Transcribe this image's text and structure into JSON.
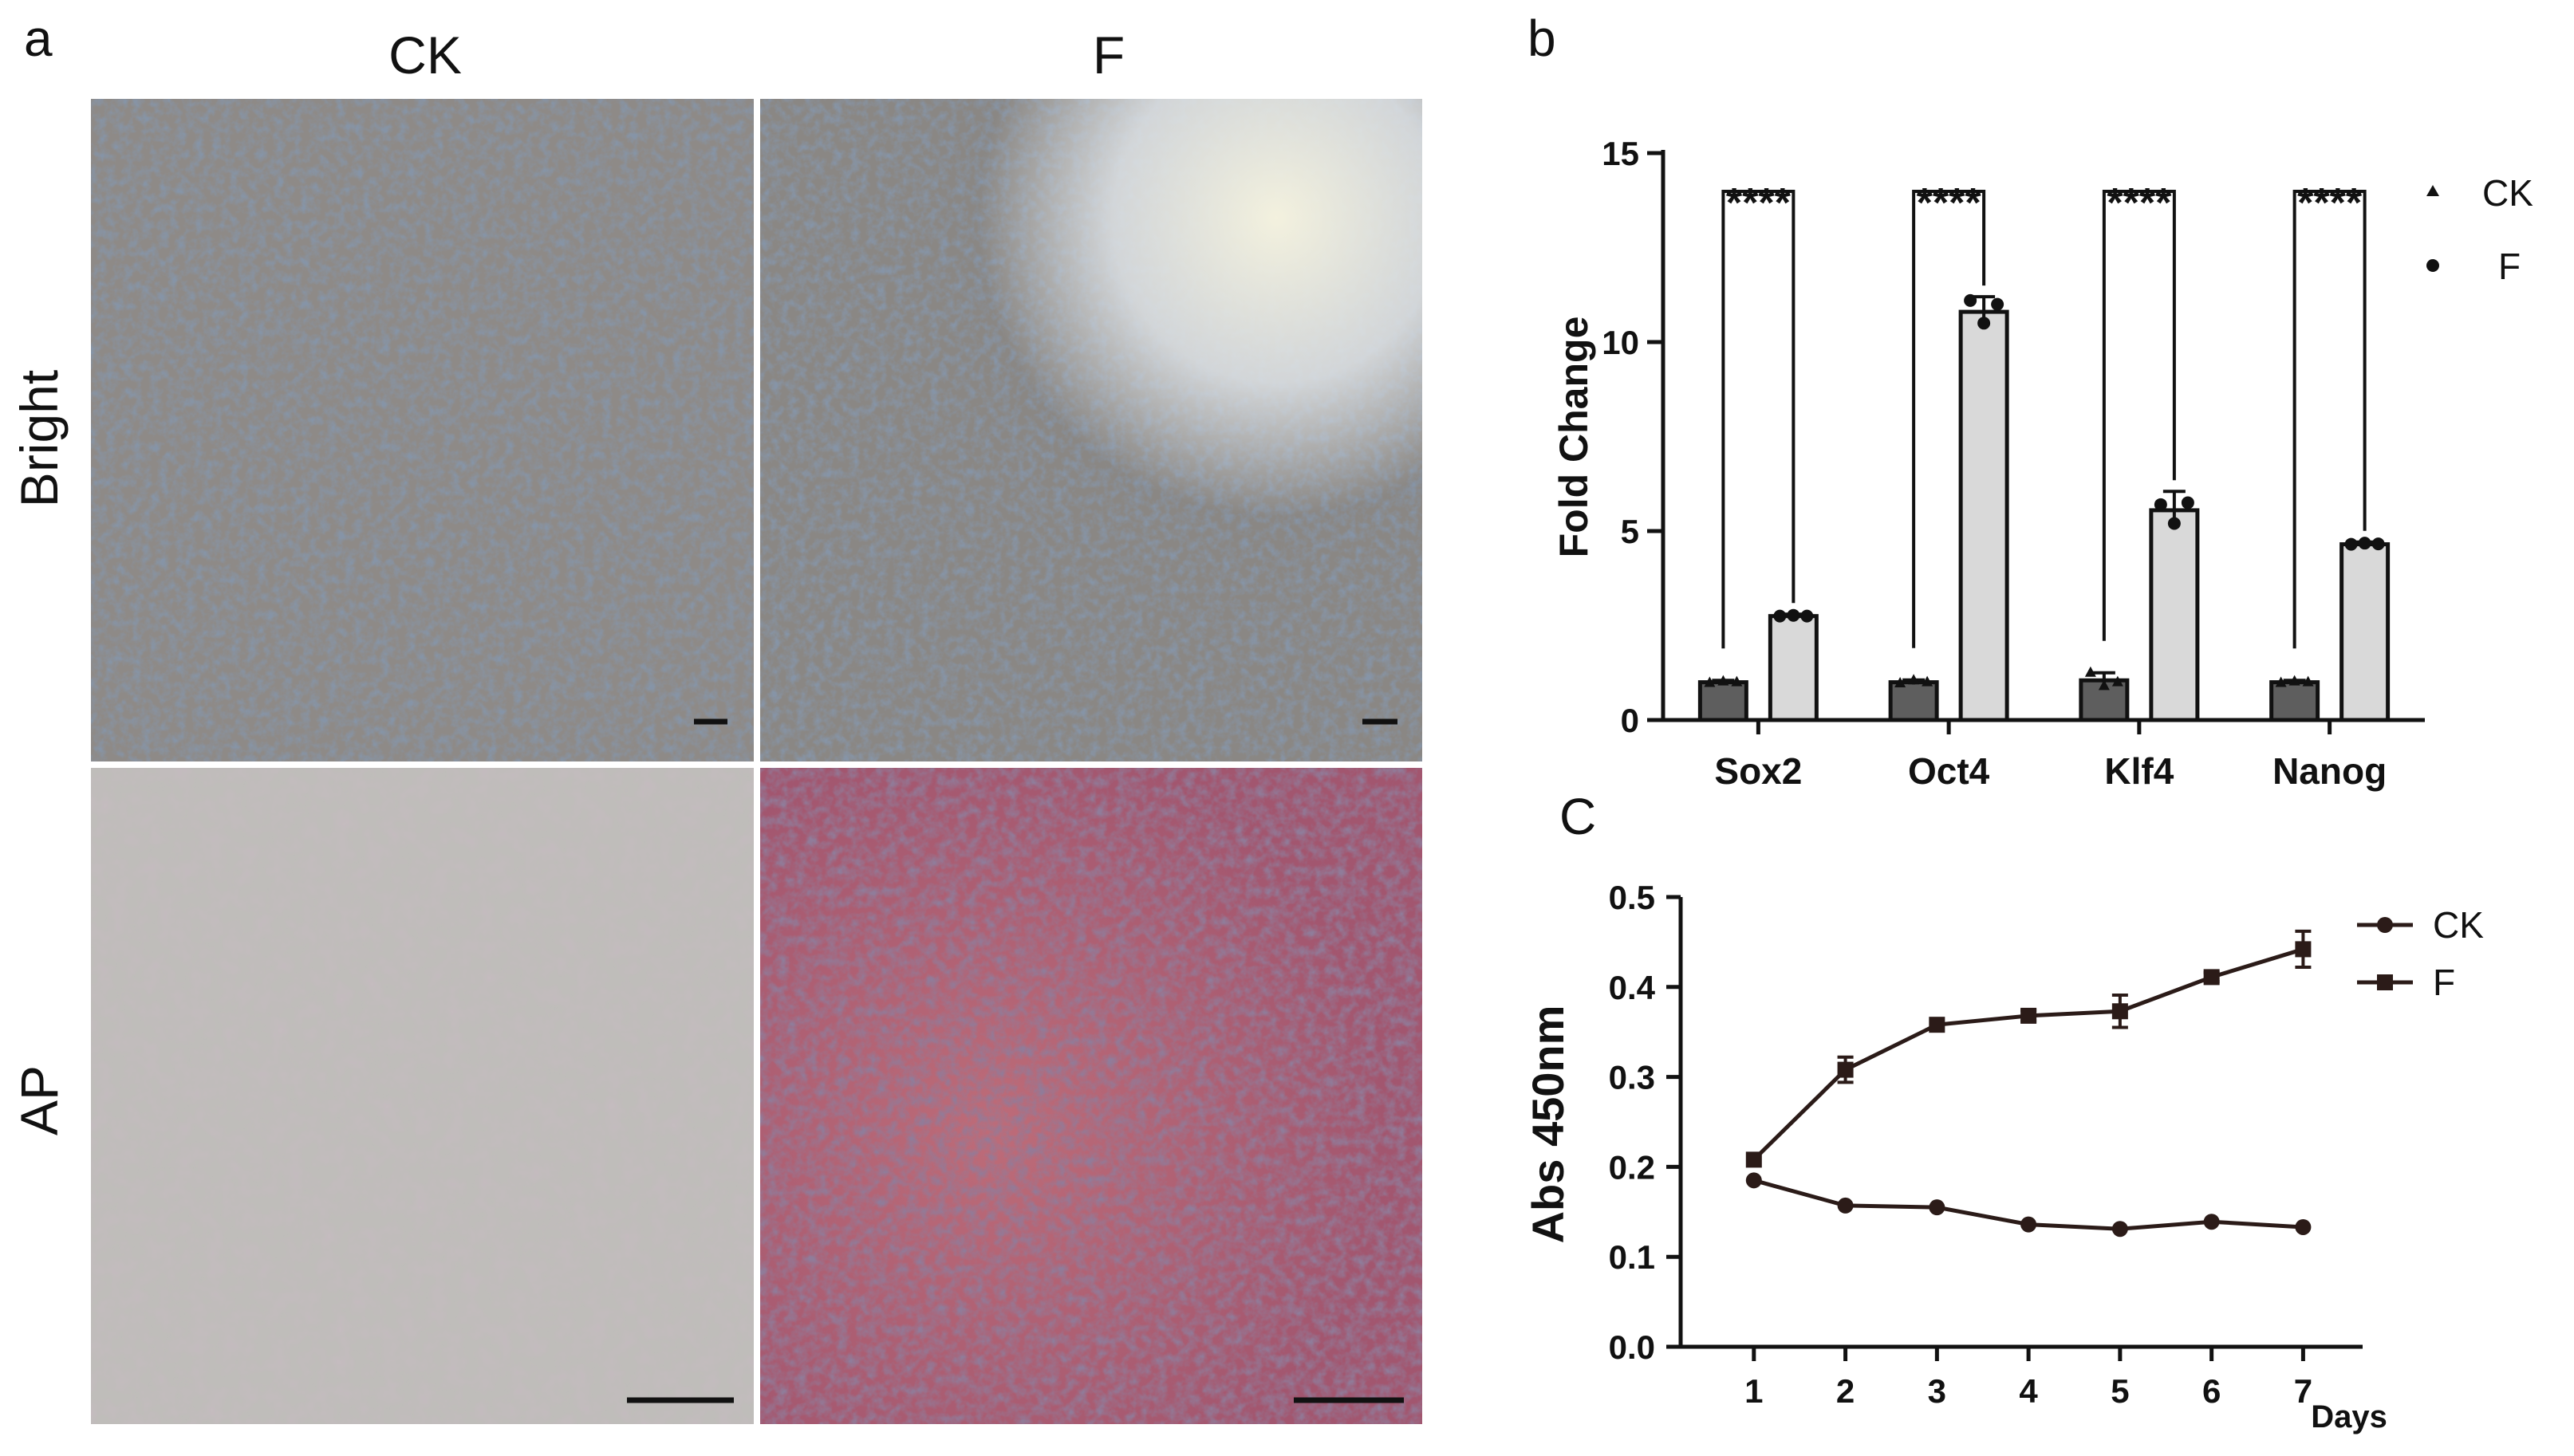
{
  "panels": {
    "a": {
      "letter": "a",
      "columns": [
        "CK",
        "F"
      ],
      "rows": [
        "Bright",
        "AP"
      ]
    },
    "b": {
      "letter": "b"
    },
    "c": {
      "letter": "C"
    }
  },
  "colors": {
    "ck_bar": "#5e5e5e",
    "f_bar": "#d9d9d9",
    "line": "#2b1b18",
    "bright_bg": "#8e8a87",
    "bright_cells": "#3e4d63",
    "bright_highlight": "#e9ede4",
    "ap_ck_bg": "#bfbdba",
    "ap_f_bg": "#a2566f"
  },
  "chart_data": [
    {
      "id": "b",
      "type": "bar",
      "categories": [
        "Sox2",
        "Oct4",
        "Klf4",
        "Nanog"
      ],
      "ylabel": "Fold Change",
      "ylim": [
        0,
        15
      ],
      "yticks": [
        "0",
        "5",
        "10",
        "15"
      ],
      "series": [
        {
          "name": "CK",
          "marker": "triangle",
          "values": [
            1.0,
            1.0,
            1.05,
            1.0
          ],
          "errors": [
            0.05,
            0.06,
            0.2,
            0.05
          ],
          "points": [
            [
              0.98,
              1.02,
              1.0
            ],
            [
              0.97,
              1.05,
              1.0
            ],
            [
              1.25,
              0.9,
              1.0
            ],
            [
              0.98,
              1.02,
              1.0
            ]
          ]
        },
        {
          "name": "F",
          "marker": "circle",
          "values": [
            2.75,
            10.8,
            5.55,
            4.65
          ],
          "errors": [
            0.05,
            0.4,
            0.5,
            0.06
          ],
          "points": [
            [
              2.75,
              2.77,
              2.75
            ],
            [
              11.1,
              10.5,
              11.0
            ],
            [
              5.7,
              5.2,
              5.75
            ],
            [
              4.65,
              4.68,
              4.66
            ]
          ]
        }
      ],
      "significance": [
        "****",
        "****",
        "****",
        "****"
      ],
      "legend": [
        "CK",
        "F"
      ],
      "legend_placement": "right"
    },
    {
      "id": "c",
      "type": "line",
      "x": [
        1,
        2,
        3,
        4,
        5,
        6,
        7
      ],
      "xlabel": "Days",
      "ylabel": "Abs 450nm",
      "ylim": [
        0,
        0.5
      ],
      "yticks": [
        "0.0",
        "0.1",
        "0.2",
        "0.3",
        "0.4",
        "0.5"
      ],
      "series": [
        {
          "name": "CK",
          "marker": "circle",
          "values": [
            0.185,
            0.157,
            0.155,
            0.136,
            0.131,
            0.139,
            0.133
          ],
          "errors": [
            0.003,
            0.003,
            0.003,
            0.003,
            0.003,
            0.003,
            0.003
          ]
        },
        {
          "name": "F",
          "marker": "square",
          "values": [
            0.208,
            0.308,
            0.358,
            0.368,
            0.373,
            0.411,
            0.442
          ],
          "errors": [
            0.003,
            0.014,
            0.004,
            0.006,
            0.018,
            0.005,
            0.02
          ]
        }
      ],
      "legend": [
        "CK",
        "F"
      ],
      "legend_placement": "top-right"
    }
  ]
}
